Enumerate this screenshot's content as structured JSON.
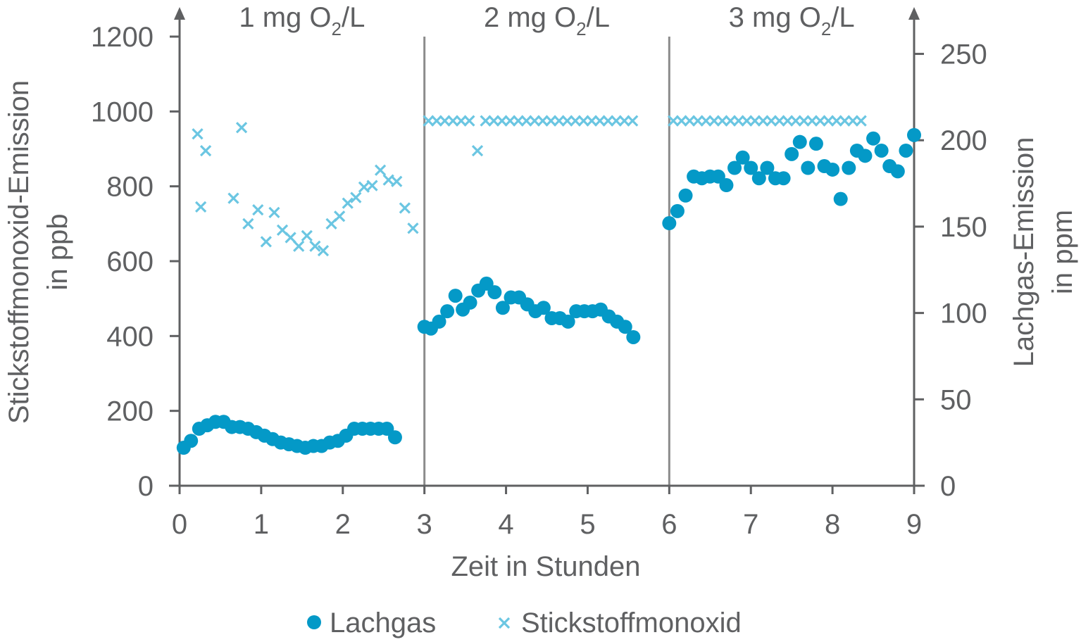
{
  "chart_data": {
    "type": "scatter",
    "title": "",
    "xlabel": "Zeit in Stunden",
    "ylabel_left": [
      "Stickstoffmonoxid-Emission",
      "in ppb"
    ],
    "ylabel_right": [
      "Lachgas-Emission",
      "in ppm"
    ],
    "xlim": [
      0,
      9
    ],
    "ylim_left": [
      0,
      1200
    ],
    "ylim_right": [
      0,
      260
    ],
    "x_ticks": [
      0,
      1,
      2,
      3,
      4,
      5,
      6,
      7,
      8,
      9
    ],
    "y_left_ticks": [
      0,
      200,
      400,
      600,
      800,
      1000,
      1200
    ],
    "y_right_ticks": [
      0,
      50,
      100,
      150,
      200,
      250
    ],
    "grid": false,
    "legend_position": "bottom-center",
    "phase_dividers_x": [
      3,
      6
    ],
    "phase_labels": [
      {
        "prefix": "1 mg O",
        "sub": "2",
        "suffix": "/L",
        "x": 1.5
      },
      {
        "prefix": "2 mg O",
        "sub": "2",
        "suffix": "/L",
        "x": 4.5
      },
      {
        "prefix": "3 mg O",
        "sub": "2",
        "suffix": "/L",
        "x": 7.5
      }
    ],
    "colors": {
      "axis": "#5f6062",
      "divider": "#8c8c8c",
      "lachgas": "#0499c7",
      "no": "#6bc6e2"
    },
    "series": [
      {
        "name": "Lachgas",
        "axis": "right",
        "marker": "circle",
        "points": [
          [
            0.05,
            22
          ],
          [
            0.14,
            26
          ],
          [
            0.24,
            33
          ],
          [
            0.34,
            35
          ],
          [
            0.44,
            37
          ],
          [
            0.54,
            37
          ],
          [
            0.64,
            34
          ],
          [
            0.74,
            34
          ],
          [
            0.84,
            33
          ],
          [
            0.94,
            31
          ],
          [
            1.04,
            29
          ],
          [
            1.14,
            27
          ],
          [
            1.24,
            25
          ],
          [
            1.34,
            24
          ],
          [
            1.44,
            23
          ],
          [
            1.54,
            22
          ],
          [
            1.64,
            23
          ],
          [
            1.74,
            23
          ],
          [
            1.84,
            25
          ],
          [
            1.94,
            26
          ],
          [
            2.04,
            29
          ],
          [
            2.14,
            33
          ],
          [
            2.24,
            33
          ],
          [
            2.34,
            33
          ],
          [
            2.44,
            33
          ],
          [
            2.54,
            33
          ],
          [
            2.64,
            28
          ],
          [
            3.0,
            92
          ],
          [
            3.08,
            91
          ],
          [
            3.18,
            95
          ],
          [
            3.28,
            101
          ],
          [
            3.38,
            110
          ],
          [
            3.47,
            102
          ],
          [
            3.56,
            106
          ],
          [
            3.66,
            113
          ],
          [
            3.76,
            117
          ],
          [
            3.86,
            112
          ],
          [
            3.96,
            103
          ],
          [
            4.06,
            109
          ],
          [
            4.16,
            109
          ],
          [
            4.26,
            105
          ],
          [
            4.36,
            101
          ],
          [
            4.46,
            103
          ],
          [
            4.56,
            97
          ],
          [
            4.66,
            97
          ],
          [
            4.76,
            95
          ],
          [
            4.86,
            101
          ],
          [
            4.96,
            101
          ],
          [
            5.06,
            101
          ],
          [
            5.16,
            102
          ],
          [
            5.26,
            98
          ],
          [
            5.36,
            95
          ],
          [
            5.46,
            92
          ],
          [
            5.56,
            86
          ],
          [
            6.0,
            152
          ],
          [
            6.1,
            159
          ],
          [
            6.2,
            168
          ],
          [
            6.3,
            179
          ],
          [
            6.4,
            178
          ],
          [
            6.5,
            179
          ],
          [
            6.6,
            179
          ],
          [
            6.7,
            174
          ],
          [
            6.8,
            184
          ],
          [
            6.9,
            190
          ],
          [
            7.0,
            184
          ],
          [
            7.1,
            178
          ],
          [
            7.2,
            184
          ],
          [
            7.3,
            178
          ],
          [
            7.4,
            178
          ],
          [
            7.5,
            192
          ],
          [
            7.6,
            199
          ],
          [
            7.7,
            184
          ],
          [
            7.8,
            198
          ],
          [
            7.9,
            185
          ],
          [
            8.0,
            183
          ],
          [
            8.1,
            166
          ],
          [
            8.2,
            184
          ],
          [
            8.3,
            194
          ],
          [
            8.4,
            191
          ],
          [
            8.5,
            201
          ],
          [
            8.6,
            194
          ],
          [
            8.7,
            185
          ],
          [
            8.8,
            182
          ],
          [
            8.9,
            194
          ],
          [
            9.0,
            203
          ]
        ]
      },
      {
        "name": "Stickstoffmonoxid",
        "axis": "left",
        "marker": "x",
        "points": [
          [
            0.22,
            940
          ],
          [
            0.26,
            745
          ],
          [
            0.32,
            895
          ],
          [
            0.66,
            768
          ],
          [
            0.76,
            957
          ],
          [
            0.84,
            700
          ],
          [
            0.96,
            737
          ],
          [
            1.06,
            652
          ],
          [
            1.16,
            730
          ],
          [
            1.26,
            683
          ],
          [
            1.36,
            663
          ],
          [
            1.46,
            640
          ],
          [
            1.56,
            668
          ],
          [
            1.66,
            640
          ],
          [
            1.76,
            628
          ],
          [
            1.86,
            700
          ],
          [
            1.96,
            720
          ],
          [
            2.06,
            755
          ],
          [
            2.16,
            770
          ],
          [
            2.26,
            798
          ],
          [
            2.36,
            802
          ],
          [
            2.46,
            843
          ],
          [
            2.56,
            817
          ],
          [
            2.66,
            813
          ],
          [
            2.76,
            742
          ],
          [
            2.86,
            688
          ],
          [
            3.05,
            975
          ],
          [
            3.15,
            975
          ],
          [
            3.25,
            975
          ],
          [
            3.35,
            975
          ],
          [
            3.45,
            975
          ],
          [
            3.55,
            975
          ],
          [
            3.65,
            895
          ],
          [
            3.75,
            975
          ],
          [
            3.85,
            975
          ],
          [
            3.95,
            975
          ],
          [
            4.05,
            975
          ],
          [
            4.15,
            975
          ],
          [
            4.25,
            975
          ],
          [
            4.35,
            975
          ],
          [
            4.45,
            975
          ],
          [
            4.55,
            975
          ],
          [
            4.65,
            975
          ],
          [
            4.75,
            975
          ],
          [
            4.85,
            975
          ],
          [
            4.95,
            975
          ],
          [
            5.05,
            975
          ],
          [
            5.15,
            975
          ],
          [
            5.25,
            975
          ],
          [
            5.35,
            975
          ],
          [
            5.45,
            975
          ],
          [
            5.55,
            975
          ],
          [
            6.05,
            975
          ],
          [
            6.15,
            975
          ],
          [
            6.25,
            975
          ],
          [
            6.35,
            975
          ],
          [
            6.45,
            975
          ],
          [
            6.55,
            975
          ],
          [
            6.65,
            975
          ],
          [
            6.75,
            975
          ],
          [
            6.85,
            975
          ],
          [
            6.95,
            975
          ],
          [
            7.05,
            975
          ],
          [
            7.15,
            975
          ],
          [
            7.25,
            975
          ],
          [
            7.35,
            975
          ],
          [
            7.45,
            975
          ],
          [
            7.55,
            975
          ],
          [
            7.65,
            975
          ],
          [
            7.75,
            975
          ],
          [
            7.85,
            975
          ],
          [
            7.95,
            975
          ],
          [
            8.05,
            975
          ],
          [
            8.15,
            975
          ],
          [
            8.25,
            975
          ],
          [
            8.35,
            975
          ]
        ]
      }
    ]
  }
}
